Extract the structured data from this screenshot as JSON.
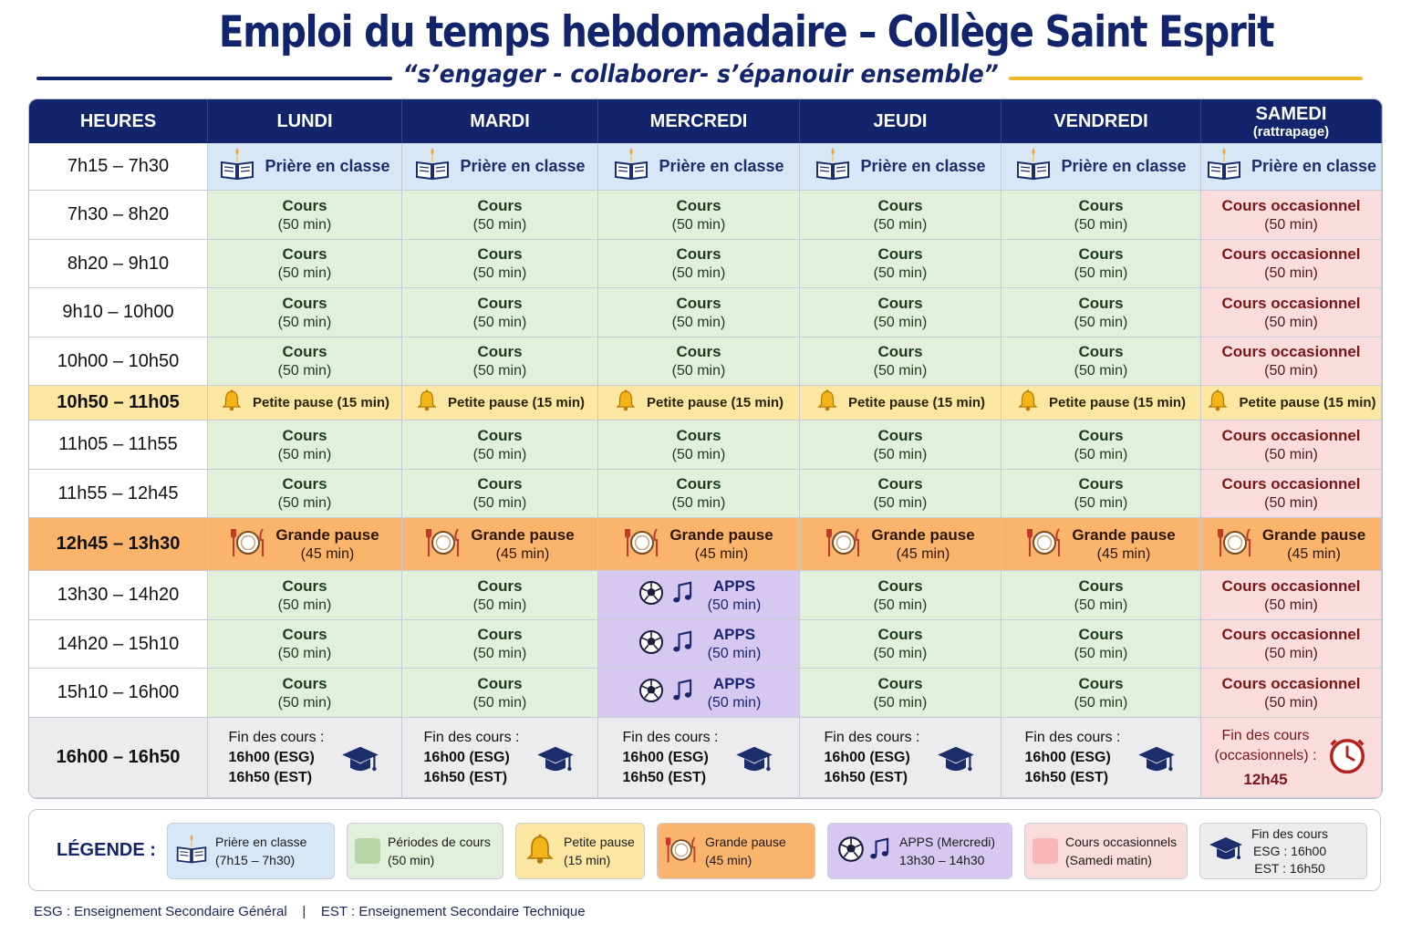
{
  "header": {
    "title": "Emploi du temps hebdomadaire – Collège Saint Esprit",
    "subtitle": "“s’engager - collaborer- s’épanouir ensemble”"
  },
  "columns": [
    "HEURES",
    "LUNDI",
    "MARDI",
    "MERCREDI",
    "JEUDI",
    "VENDREDI",
    "SAMEDI"
  ],
  "saturday_note": "(rattrapage)",
  "labels": {
    "priere": "Prière en classe",
    "cours": "Cours",
    "duree_50": "(50 min)",
    "cours_occasionnel": "Cours occasionnel",
    "petite_pause": "Petite pause (15 min)",
    "grande_pause": "Grande pause",
    "duree_45": "(45 min)",
    "apps": "APPS",
    "fin_des_cours": "Fin des cours :",
    "fin_esg": "16h00 (ESG)",
    "fin_est": "16h50 (EST)",
    "fin_sat_line1": "Fin des cours",
    "fin_sat_line2": "(occasionnels) :",
    "fin_sat_time": "12h45"
  },
  "hours": [
    "7h15 – 7h30",
    "7h30 – 8h20",
    "8h20 – 9h10",
    "9h10 – 10h00",
    "10h00 – 10h50",
    "10h50 – 11h05",
    "11h05 – 11h55",
    "11h55 – 12h45",
    "12h45 – 13h30",
    "13h30 – 14h20",
    "14h20 – 15h10",
    "15h10 – 16h00",
    "16h00 – 16h50"
  ],
  "legend": {
    "title": "LÉGENDE :",
    "items": [
      {
        "line1": "Prière en classe",
        "line2": "(7h15 – 7h30)"
      },
      {
        "line1": "Périodes de cours",
        "line2": "(50 min)"
      },
      {
        "line1": "Petite pause",
        "line2": "(15 min)"
      },
      {
        "line1": "Grande pause",
        "line2": "(45 min)"
      },
      {
        "line1": "APPS (Mercredi)",
        "line2": "13h30 – 14h30"
      },
      {
        "line1": "Cours occasionnels",
        "line2": "(Samedi matin)"
      },
      {
        "line1": "Fin des cours",
        "line2": "ESG : 16h00",
        "line3": "EST : 16h50"
      }
    ]
  },
  "footnote": {
    "esg": "ESG : Enseignement Secondaire Général",
    "sep": "|",
    "est": "EST : Enseignement Secondaire Technique"
  },
  "colors": {
    "navy": "#12246b",
    "priere": "#d8e7f8",
    "cours": "#e2efdb",
    "petite_pause": "#fbe7a2",
    "grande_pause": "#fbb46b",
    "apps": "#d6c8f0",
    "occasionnel": "#fbdcdc",
    "fin": "#ececee"
  }
}
